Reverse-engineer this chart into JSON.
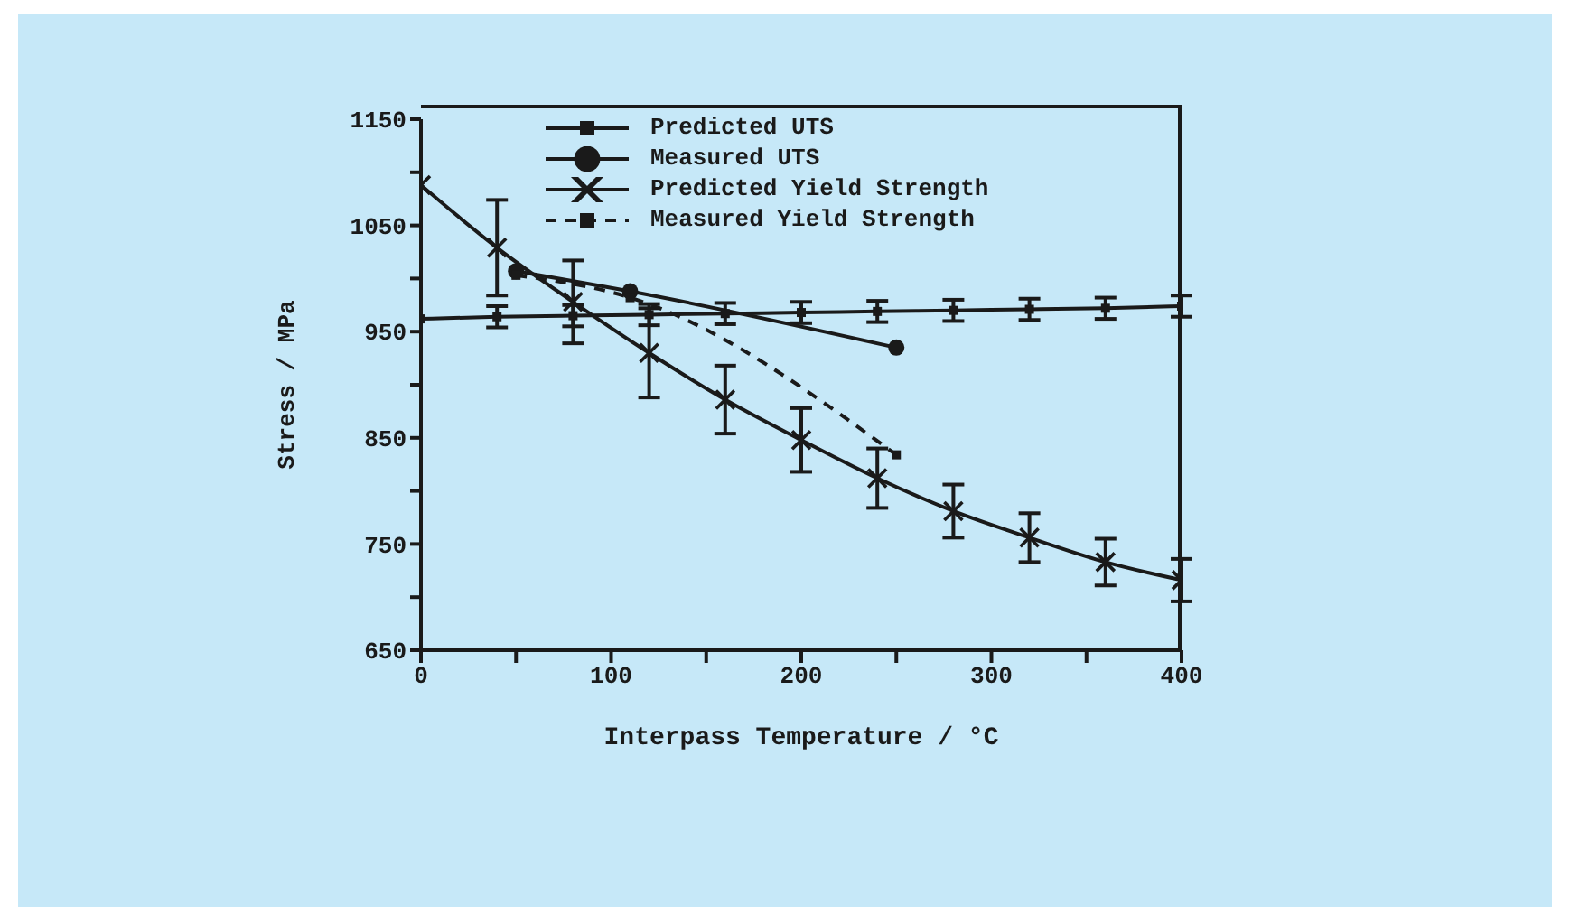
{
  "chart_data": {
    "type": "line",
    "xlabel": "Interpass Temperature / °C",
    "ylabel": "Stress / MPa",
    "xlim": [
      0,
      400
    ],
    "xticks": [
      0,
      {
        "value": 50,
        "label": null
      },
      100,
      {
        "value": 150,
        "label": null
      },
      200,
      {
        "value": 250,
        "label": null
      },
      300,
      {
        "value": 350,
        "label": null
      },
      400
    ],
    "ylim": [
      650,
      1150
    ],
    "yticks": [
      650,
      {
        "value": 700,
        "label": null
      },
      750,
      {
        "value": 800,
        "label": null
      },
      850,
      {
        "value": 900,
        "label": null
      },
      950,
      {
        "value": 1000,
        "label": null
      },
      1050,
      {
        "value": 1100,
        "label": null
      },
      1150
    ],
    "grid": false,
    "legend": "top",
    "series": [
      {
        "name": "Predicted UTS",
        "color": "#1a1a1a",
        "marker": "square",
        "line_style": "solid",
        "x": [
          0,
          40,
          80,
          120,
          160,
          200,
          240,
          280,
          320,
          360,
          400
        ],
        "values": [
          962,
          964,
          965,
          966,
          967,
          968,
          969,
          970,
          971,
          972,
          974
        ],
        "errors": [
          null,
          10,
          10,
          10,
          10,
          10,
          10,
          10,
          10,
          10,
          10
        ]
      },
      {
        "name": "Measured UTS",
        "color": "#1a1a1a",
        "marker": "circle",
        "line_style": "solid",
        "x": [
          50,
          110,
          250
        ],
        "values": [
          1007,
          988,
          935
        ]
      },
      {
        "name": "Predicted Yield Strength",
        "color": "#1a1a1a",
        "marker": "cross",
        "line_style": "solid",
        "x": [
          0,
          40,
          80,
          120,
          160,
          200,
          240,
          280,
          320,
          360,
          400
        ],
        "values": [
          1088,
          1029,
          978,
          930,
          886,
          848,
          812,
          781,
          756,
          733,
          716
        ],
        "errors": [
          null,
          45,
          39,
          42,
          32,
          30,
          28,
          25,
          23,
          22,
          20
        ]
      },
      {
        "name": "Measured Yield Strength",
        "color": "#1a1a1a",
        "marker": "square",
        "line_style": "dashed",
        "x": [
          50,
          110,
          250
        ],
        "values": [
          1003,
          982,
          834
        ]
      }
    ]
  }
}
